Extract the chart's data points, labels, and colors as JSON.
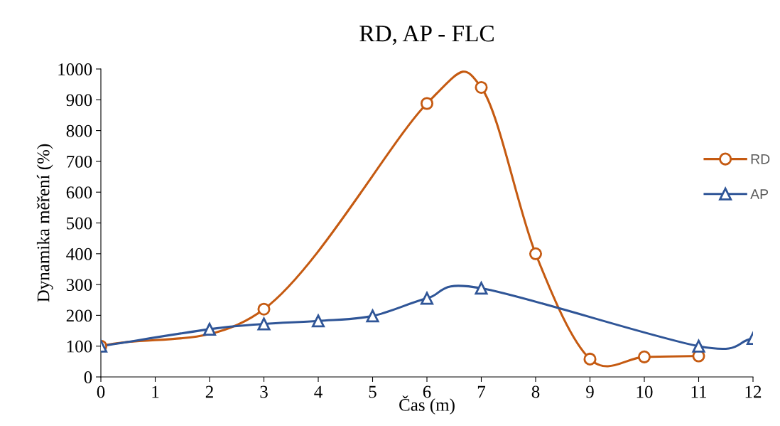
{
  "chart_data": {
    "type": "line",
    "title": "RD, AP - FLC",
    "xlabel": "Čas (m)",
    "ylabel": "Dynamika měření (%)",
    "xlim": [
      0,
      12
    ],
    "xticks": [
      0,
      1,
      2,
      3,
      4,
      5,
      6,
      7,
      8,
      9,
      10,
      11,
      12
    ],
    "ylim": [
      0,
      1000
    ],
    "yticks": [
      0,
      100,
      200,
      300,
      400,
      500,
      600,
      700,
      800,
      900,
      1000
    ],
    "grid": false,
    "legend": "right",
    "line_style": "solid",
    "series": [
      {
        "name": "RD",
        "color": "#c55a11",
        "marker": "circle",
        "x": [
          0,
          3,
          6,
          7,
          8,
          9,
          10,
          11
        ],
        "values": [
          100,
          220,
          888,
          940,
          400,
          58,
          65,
          68
        ]
      },
      {
        "name": "AP",
        "color": "#2f5597",
        "marker": "triangle",
        "x": [
          0,
          2,
          3,
          4,
          5,
          6,
          7,
          11,
          12
        ],
        "values": [
          100,
          155,
          172,
          182,
          198,
          255,
          288,
          100,
          125
        ]
      }
    ]
  }
}
